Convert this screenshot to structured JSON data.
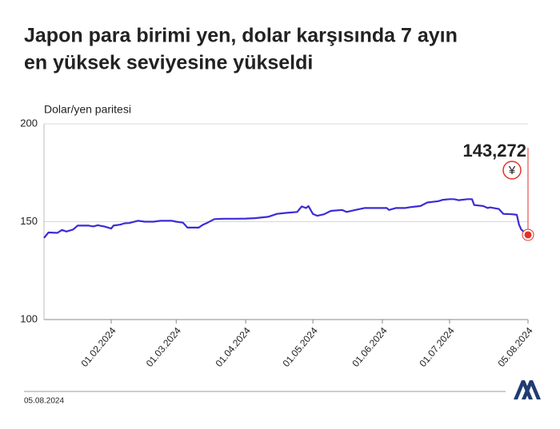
{
  "chart_data": {
    "type": "line",
    "title": [
      "Japon para birimi yen, dolar karşısında 7 ayın",
      "en yüksek seviyesine yükseldi"
    ],
    "y_label": "Dolar/yen paritesi",
    "date_note": "05.08.2024",
    "currency_icon": "¥",
    "annotation": "143,272",
    "x": [
      "2024-01-02",
      "2024-01-04",
      "2024-01-08",
      "2024-01-10",
      "2024-01-12",
      "2024-01-15",
      "2024-01-17",
      "2024-01-22",
      "2024-01-24",
      "2024-01-26",
      "2024-01-29",
      "2024-02-01",
      "2024-02-02",
      "2024-02-05",
      "2024-02-07",
      "2024-02-09",
      "2024-02-13",
      "2024-02-16",
      "2024-02-20",
      "2024-02-23",
      "2024-02-28",
      "2024-03-01",
      "2024-03-04",
      "2024-03-06",
      "2024-03-11",
      "2024-03-13",
      "2024-03-15",
      "2024-03-18",
      "2024-03-22",
      "2024-03-28",
      "2024-04-01",
      "2024-04-05",
      "2024-04-11",
      "2024-04-15",
      "2024-04-19",
      "2024-04-24",
      "2024-04-26",
      "2024-04-28",
      "2024-04-29",
      "2024-05-01",
      "2024-05-03",
      "2024-05-06",
      "2024-05-09",
      "2024-05-14",
      "2024-05-16",
      "2024-05-20",
      "2024-05-24",
      "2024-05-28",
      "2024-06-03",
      "2024-06-04",
      "2024-06-07",
      "2024-06-11",
      "2024-06-14",
      "2024-06-18",
      "2024-06-21",
      "2024-06-26",
      "2024-06-28",
      "2024-07-01",
      "2024-07-03",
      "2024-07-05",
      "2024-07-09",
      "2024-07-11",
      "2024-07-12",
      "2024-07-16",
      "2024-07-18",
      "2024-07-19",
      "2024-07-23",
      "2024-07-25",
      "2024-07-29",
      "2024-07-31",
      "2024-08-01",
      "2024-08-02",
      "2024-08-03",
      "2024-08-05"
    ],
    "series": [
      {
        "name": "Dolar/yen",
        "color": "#3b2bd6",
        "values": [
          141.7,
          144.5,
          144.3,
          145.8,
          145.0,
          146.0,
          148.0,
          148.0,
          147.6,
          148.2,
          147.5,
          146.5,
          148.0,
          148.5,
          149.2,
          149.3,
          150.5,
          150.0,
          150.0,
          150.5,
          150.5,
          150.0,
          149.5,
          147.0,
          147.0,
          148.5,
          149.5,
          151.3,
          151.5,
          151.5,
          151.6,
          151.8,
          152.5,
          154.0,
          154.5,
          155.0,
          157.8,
          157.0,
          158.0,
          154.0,
          153.0,
          153.8,
          155.5,
          156.0,
          155.0,
          156.0,
          157.0,
          157.0,
          157.0,
          156.0,
          157.0,
          157.0,
          157.5,
          158.0,
          159.8,
          160.5,
          161.2,
          161.5,
          161.5,
          161.0,
          161.5,
          161.5,
          158.5,
          158.0,
          157.0,
          157.3,
          156.5,
          154.0,
          153.8,
          153.5,
          148.5,
          146.0,
          145.0,
          143.272
        ]
      }
    ],
    "highlight_color": "#e0322b",
    "xlim": [
      "2024-01-02",
      "2024-08-05"
    ],
    "xticks": [
      {
        "value": "2024-02-01",
        "label": "01.02.2024"
      },
      {
        "value": "2024-03-01",
        "label": "01.03.2024"
      },
      {
        "value": "2024-04-01",
        "label": "01.04.2024"
      },
      {
        "value": "2024-05-01",
        "label": "01.05.2024"
      },
      {
        "value": "2024-06-01",
        "label": "01.06.2024"
      },
      {
        "value": "2024-07-01",
        "label": "01.07.2024"
      },
      {
        "value": "2024-08-05",
        "label": "05.08.2024"
      }
    ],
    "ylim": [
      100,
      200
    ],
    "yticks": [
      100,
      150,
      200
    ],
    "grid": true
  }
}
